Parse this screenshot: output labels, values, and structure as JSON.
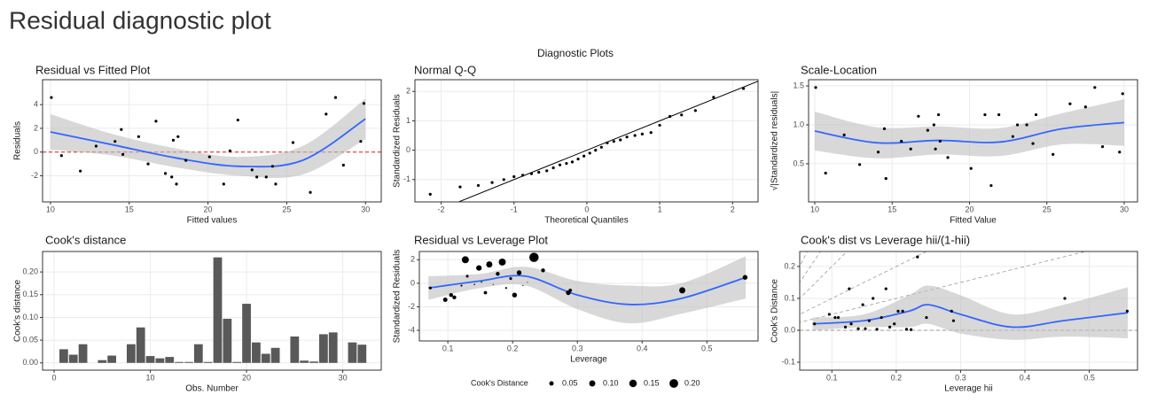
{
  "title": "Residual diagnostic plot",
  "subtitle": "Diagnostic Plots",
  "chart_data": [
    {
      "type": "scatter",
      "title": "Residual vs Fitted Plot",
      "x_label": "Fitted values",
      "y_label": "Residuals",
      "xlim": [
        9.5,
        31
      ],
      "ylim": [
        -4.2,
        6.1
      ],
      "xticks": [
        10,
        15,
        20,
        25,
        30
      ],
      "yticks": [
        -2,
        0,
        2,
        4
      ],
      "x": [
        10.06,
        10.7,
        11.9,
        12.9,
        14.1,
        14.5,
        14.6,
        15.6,
        16.2,
        16.7,
        17.3,
        17.7,
        17.8,
        18.0,
        18.1,
        18.6,
        20.1,
        21.0,
        21.4,
        21.9,
        22.8,
        23.1,
        23.7,
        24.1,
        24.3,
        25.4,
        26.5,
        27.5,
        28.1,
        28.6,
        29.7,
        29.9
      ],
      "y": [
        4.6,
        -0.3,
        -1.6,
        0.5,
        0.9,
        1.9,
        -0.2,
        1.3,
        -1.0,
        2.6,
        -1.8,
        -2.1,
        1.0,
        -2.7,
        1.3,
        -0.7,
        -0.4,
        -2.7,
        0.1,
        2.7,
        -1.5,
        -2.1,
        -2.1,
        -1.2,
        -2.7,
        0.8,
        -3.4,
        3.2,
        4.6,
        -1.1,
        0.9,
        4.1
      ],
      "point_color": "#000000",
      "smooth": {
        "x": [
          10,
          14,
          18,
          22,
          26,
          30
        ],
        "y": [
          1.7,
          0.6,
          -0.5,
          -1.2,
          -0.7,
          2.8
        ],
        "lower": [
          0.2,
          -0.3,
          -1.3,
          -2.0,
          -1.9,
          1.1
        ],
        "upper": [
          3.2,
          1.5,
          0.3,
          -0.4,
          0.5,
          4.5
        ],
        "color": "#3366ff",
        "band_color": "#bebebe"
      },
      "hline": 0,
      "hline_color": "#e41a1c",
      "grid": true
    },
    {
      "type": "qq",
      "title": "Normal Q-Q",
      "x_label": "Theoretical Quantiles",
      "y_label": "Standardized Residuals",
      "xlim": [
        -2.36,
        2.35
      ],
      "ylim": [
        -1.76,
        2.4
      ],
      "xticks": [
        -2,
        -1,
        0,
        1,
        2
      ],
      "yticks": [
        -1,
        0,
        1,
        2
      ],
      "x": [
        -2.15,
        -1.74,
        -1.49,
        -1.3,
        -1.14,
        -1.0,
        -0.88,
        -0.76,
        -0.66,
        -0.55,
        -0.46,
        -0.37,
        -0.28,
        -0.2,
        -0.12,
        -0.04,
        0.04,
        0.12,
        0.2,
        0.28,
        0.37,
        0.46,
        0.55,
        0.66,
        0.76,
        0.88,
        1.0,
        1.14,
        1.3,
        1.49,
        1.74,
        2.15
      ],
      "y": [
        -1.5,
        -1.25,
        -1.2,
        -1.1,
        -1.0,
        -0.9,
        -0.85,
        -0.8,
        -0.75,
        -0.7,
        -0.6,
        -0.5,
        -0.45,
        -0.4,
        -0.3,
        -0.2,
        -0.1,
        0.0,
        0.1,
        0.25,
        0.3,
        0.35,
        0.45,
        0.5,
        0.55,
        0.6,
        0.85,
        1.15,
        1.2,
        1.35,
        1.8,
        2.1
      ],
      "point_color": "#000000",
      "ref_line": {
        "intercept": 0,
        "slope": 1,
        "color": "#000000"
      },
      "grid": true
    },
    {
      "type": "scatter",
      "title": "Scale-Location",
      "x_label": "Fitted Value",
      "y_label": "√|Standardized residuals|",
      "xlim": [
        9.6,
        30.86
      ],
      "ylim": [
        0.01,
        1.58
      ],
      "xticks": [
        10,
        15,
        20,
        25,
        30
      ],
      "yticks": [
        0.5,
        {
          "value": 1,
          "label": "1.0"
        },
        1.5
      ],
      "x": [
        10.06,
        10.7,
        11.9,
        12.9,
        14.1,
        14.5,
        14.6,
        15.6,
        16.2,
        16.7,
        17.3,
        17.7,
        17.8,
        18.0,
        18.1,
        18.6,
        20.1,
        21.0,
        21.4,
        21.9,
        22.8,
        23.1,
        23.7,
        24.1,
        24.3,
        25.4,
        26.5,
        27.5,
        28.1,
        28.6,
        29.7,
        29.9
      ],
      "y": [
        1.48,
        0.38,
        0.87,
        0.49,
        0.65,
        0.95,
        0.31,
        0.79,
        0.69,
        1.11,
        0.93,
        1.0,
        0.69,
        1.13,
        0.79,
        0.58,
        0.44,
        1.13,
        0.22,
        1.13,
        0.85,
        1.0,
        1.0,
        0.76,
        1.13,
        0.62,
        1.27,
        1.23,
        1.48,
        0.72,
        0.65,
        1.4
      ],
      "point_color": "#000000",
      "smooth": {
        "x": [
          10,
          14,
          18,
          22,
          26,
          30
        ],
        "y": [
          0.92,
          0.77,
          0.8,
          0.78,
          0.95,
          1.03
        ],
        "lower": [
          0.67,
          0.57,
          0.62,
          0.6,
          0.75,
          0.73
        ],
        "upper": [
          1.17,
          0.97,
          0.98,
          0.96,
          1.15,
          1.33
        ],
        "color": "#3366ff",
        "band_color": "#bebebe"
      },
      "grid": true
    },
    {
      "type": "bar",
      "title": "Cook's distance",
      "x_label": "Obs. Number",
      "y_label": "Cook's distance",
      "xlim": [
        -1.2,
        34
      ],
      "ylim": [
        -0.016,
        0.245
      ],
      "xticks": [
        0,
        10,
        20,
        30
      ],
      "yticks": [
        {
          "value": 0,
          "label": "0.00"
        },
        0.05,
        {
          "value": 0.1,
          "label": "0.10"
        },
        0.15,
        {
          "value": 0.2,
          "label": "0.20"
        }
      ],
      "x": [
        1,
        2,
        3,
        4,
        5,
        6,
        7,
        8,
        9,
        10,
        11,
        12,
        13,
        14,
        15,
        16,
        17,
        18,
        19,
        20,
        21,
        22,
        23,
        24,
        25,
        26,
        27,
        28,
        29,
        30,
        31,
        32
      ],
      "values": [
        0.03,
        0.018,
        0.041,
        0.0,
        0.006,
        0.016,
        0.0,
        0.041,
        0.078,
        0.015,
        0.01,
        0.013,
        0.002,
        0.002,
        0.041,
        0.002,
        0.232,
        0.097,
        0.002,
        0.13,
        0.045,
        0.02,
        0.033,
        0.0,
        0.058,
        0.005,
        0.003,
        0.063,
        0.067,
        0.0,
        0.045,
        0.04
      ],
      "color": "#595959",
      "grid": true
    },
    {
      "type": "scatter",
      "title": "Residual vs Leverage Plot",
      "x_label": "Leverage",
      "y_label": "Standardized Residuals",
      "xlim": [
        0.056,
        0.579
      ],
      "ylim": [
        -4.9,
        2.7
      ],
      "xticks": [
        0.1,
        0.2,
        0.3,
        0.4,
        0.5
      ],
      "yticks": [
        -4,
        -2,
        0,
        2
      ],
      "x": [
        0.073,
        0.096,
        0.105,
        0.11,
        0.121,
        0.127,
        0.13,
        0.141,
        0.148,
        0.152,
        0.158,
        0.164,
        0.17,
        0.177,
        0.184,
        0.19,
        0.197,
        0.203,
        0.21,
        0.216,
        0.223,
        0.233,
        0.247,
        0.286,
        0.289,
        0.462,
        0.559
      ],
      "y": [
        -0.4,
        -1.4,
        -1.0,
        -1.2,
        -0.2,
        2.0,
        0.6,
        -0.1,
        1.3,
        0.1,
        -0.8,
        1.6,
        -0.1,
        0.8,
        1.8,
        -0.4,
        0.4,
        -1.0,
        0.9,
        -0.2,
        0.1,
        2.2,
        1.1,
        -0.8,
        -0.6,
        -0.6,
        0.5
      ],
      "size": [
        0.02,
        0.05,
        0.04,
        0.04,
        0.01,
        0.13,
        0.02,
        0.005,
        0.08,
        0.005,
        0.03,
        0.1,
        0.003,
        0.04,
        0.13,
        0.01,
        0.02,
        0.06,
        0.06,
        0.003,
        0.002,
        0.23,
        0.04,
        0.06,
        0.03,
        0.1,
        0.06
      ],
      "point_color": "#000000",
      "size_legend": {
        "title": "Cook's Distance",
        "values": [
          0.05,
          {
            "value": 0.1,
            "label": "0.10"
          },
          0.15,
          {
            "value": 0.2,
            "label": "0.20"
          }
        ]
      },
      "smooth": {
        "x": [
          0.07,
          0.15,
          0.22,
          0.3,
          0.38,
          0.46,
          0.56
        ],
        "y": [
          -0.4,
          0.2,
          0.6,
          -1.0,
          -1.8,
          -1.3,
          0.5
        ],
        "lower": [
          -1.4,
          -0.4,
          -0.2,
          -2.2,
          -3.4,
          -2.6,
          -1.3
        ],
        "upper": [
          0.6,
          0.8,
          1.4,
          0.2,
          -0.2,
          0.0,
          2.3
        ],
        "color": "#3366ff",
        "band_color": "#bebebe"
      },
      "grid": true
    },
    {
      "type": "scatter",
      "title": "Cook's dist vs Leverage hii/(1-hii)",
      "x_label": "Leverage hii",
      "y_label": "Cook's Distance",
      "xlim": [
        0.05,
        0.575
      ],
      "ylim": [
        -0.125,
        0.247
      ],
      "xticks": [
        0.1,
        0.2,
        0.3,
        0.4,
        0.5
      ],
      "yticks": [
        -0.1,
        {
          "value": 0,
          "label": "0.0"
        },
        0.1,
        0.2
      ],
      "x": [
        0.073,
        0.096,
        0.105,
        0.11,
        0.121,
        0.127,
        0.13,
        0.141,
        0.148,
        0.152,
        0.158,
        0.164,
        0.17,
        0.177,
        0.184,
        0.19,
        0.197,
        0.203,
        0.21,
        0.216,
        0.223,
        0.233,
        0.247,
        0.286,
        0.289,
        0.462,
        0.559
      ],
      "y": [
        0.02,
        0.05,
        0.04,
        0.04,
        0.01,
        0.13,
        0.02,
        0.005,
        0.08,
        0.005,
        0.03,
        0.1,
        0.003,
        0.04,
        0.13,
        0.01,
        0.02,
        0.06,
        0.06,
        0.003,
        0.002,
        0.23,
        0.04,
        0.06,
        0.03,
        0.1,
        0.06
      ],
      "point_color": "#000000",
      "contour_slopes": [
        0.5,
        1,
        2,
        3,
        4,
        6
      ],
      "contour_color": "#9a9a9a",
      "hline": 0,
      "hline_color": "#9a9a9a",
      "smooth": {
        "x": [
          0.07,
          0.15,
          0.22,
          0.25,
          0.3,
          0.38,
          0.46,
          0.56
        ],
        "y": [
          0.02,
          0.03,
          0.06,
          0.08,
          0.05,
          0.01,
          0.03,
          0.055
        ],
        "lower": [
          0.0,
          0.01,
          0.01,
          0.02,
          -0.01,
          -0.03,
          -0.02,
          -0.025
        ],
        "upper": [
          0.04,
          0.05,
          0.11,
          0.14,
          0.11,
          0.05,
          0.08,
          0.135
        ],
        "color": "#3366ff",
        "band_color": "#bebebe"
      },
      "grid": true
    }
  ]
}
